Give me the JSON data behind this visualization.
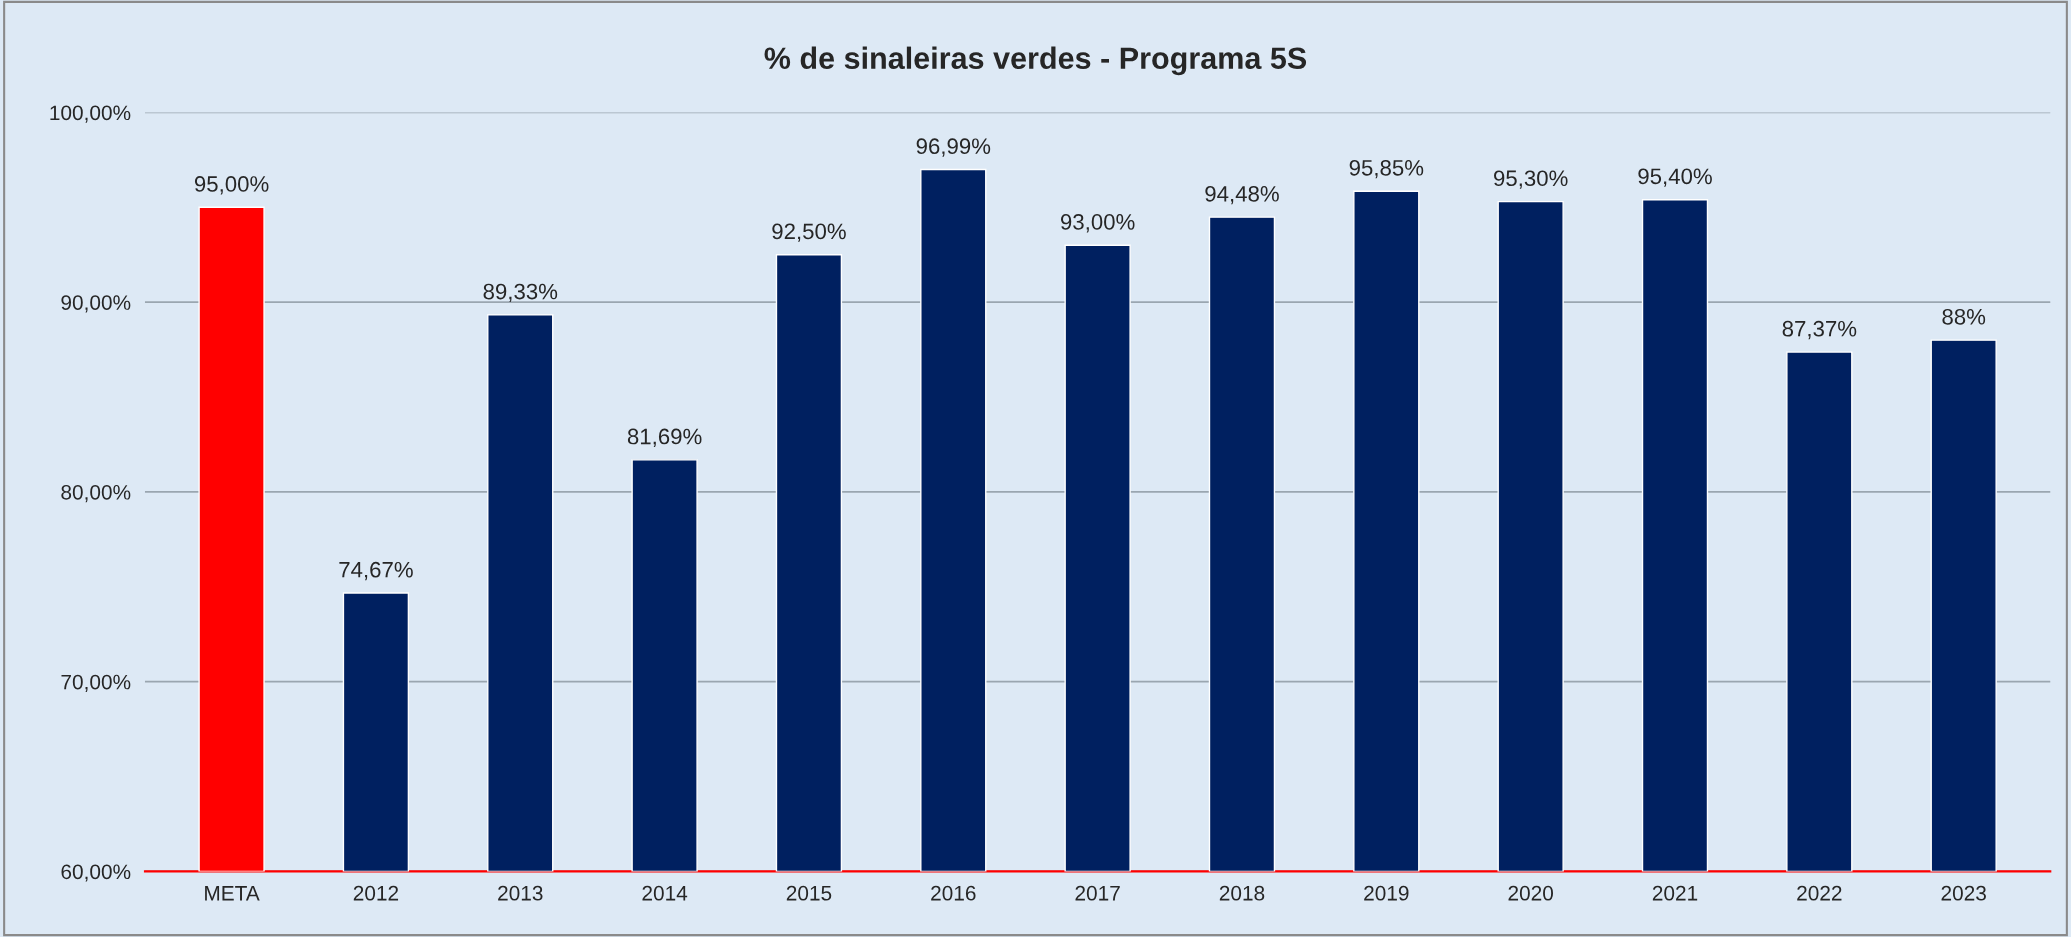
{
  "chart_data": {
    "type": "bar",
    "title": "% de sinaleiras verdes - Programa 5S",
    "categories": [
      "META",
      "2012",
      "2013",
      "2014",
      "2015",
      "2016",
      "2017",
      "2018",
      "2019",
      "2020",
      "2021",
      "2022",
      "2023"
    ],
    "values": [
      95.0,
      74.67,
      89.33,
      81.69,
      92.5,
      96.99,
      93.0,
      94.48,
      95.85,
      95.3,
      95.4,
      87.37,
      88
    ],
    "colors": [
      "#ff0000",
      "#002060",
      "#002060",
      "#002060",
      "#002060",
      "#002060",
      "#002060",
      "#002060",
      "#002060",
      "#002060",
      "#002060",
      "#002060",
      "#002060"
    ],
    "value_labels": [
      "95,00%",
      "74,67%",
      "89,33%",
      "81,69%",
      "92,50%",
      "96,99%",
      "93,00%",
      "94,48%",
      "95,85%",
      "95,30%",
      "95,40%",
      "87,37%",
      "88%"
    ],
    "ylim": [
      60,
      100
    ],
    "yticks": [
      {
        "value": 60,
        "label": "60,00%"
      },
      {
        "value": 70,
        "label": "70,00%"
      },
      {
        "value": 80,
        "label": "80,00%"
      },
      {
        "value": 90,
        "label": "90,00%"
      },
      {
        "value": 100,
        "label": "100,00%"
      }
    ],
    "grid": "y",
    "legend": false
  }
}
